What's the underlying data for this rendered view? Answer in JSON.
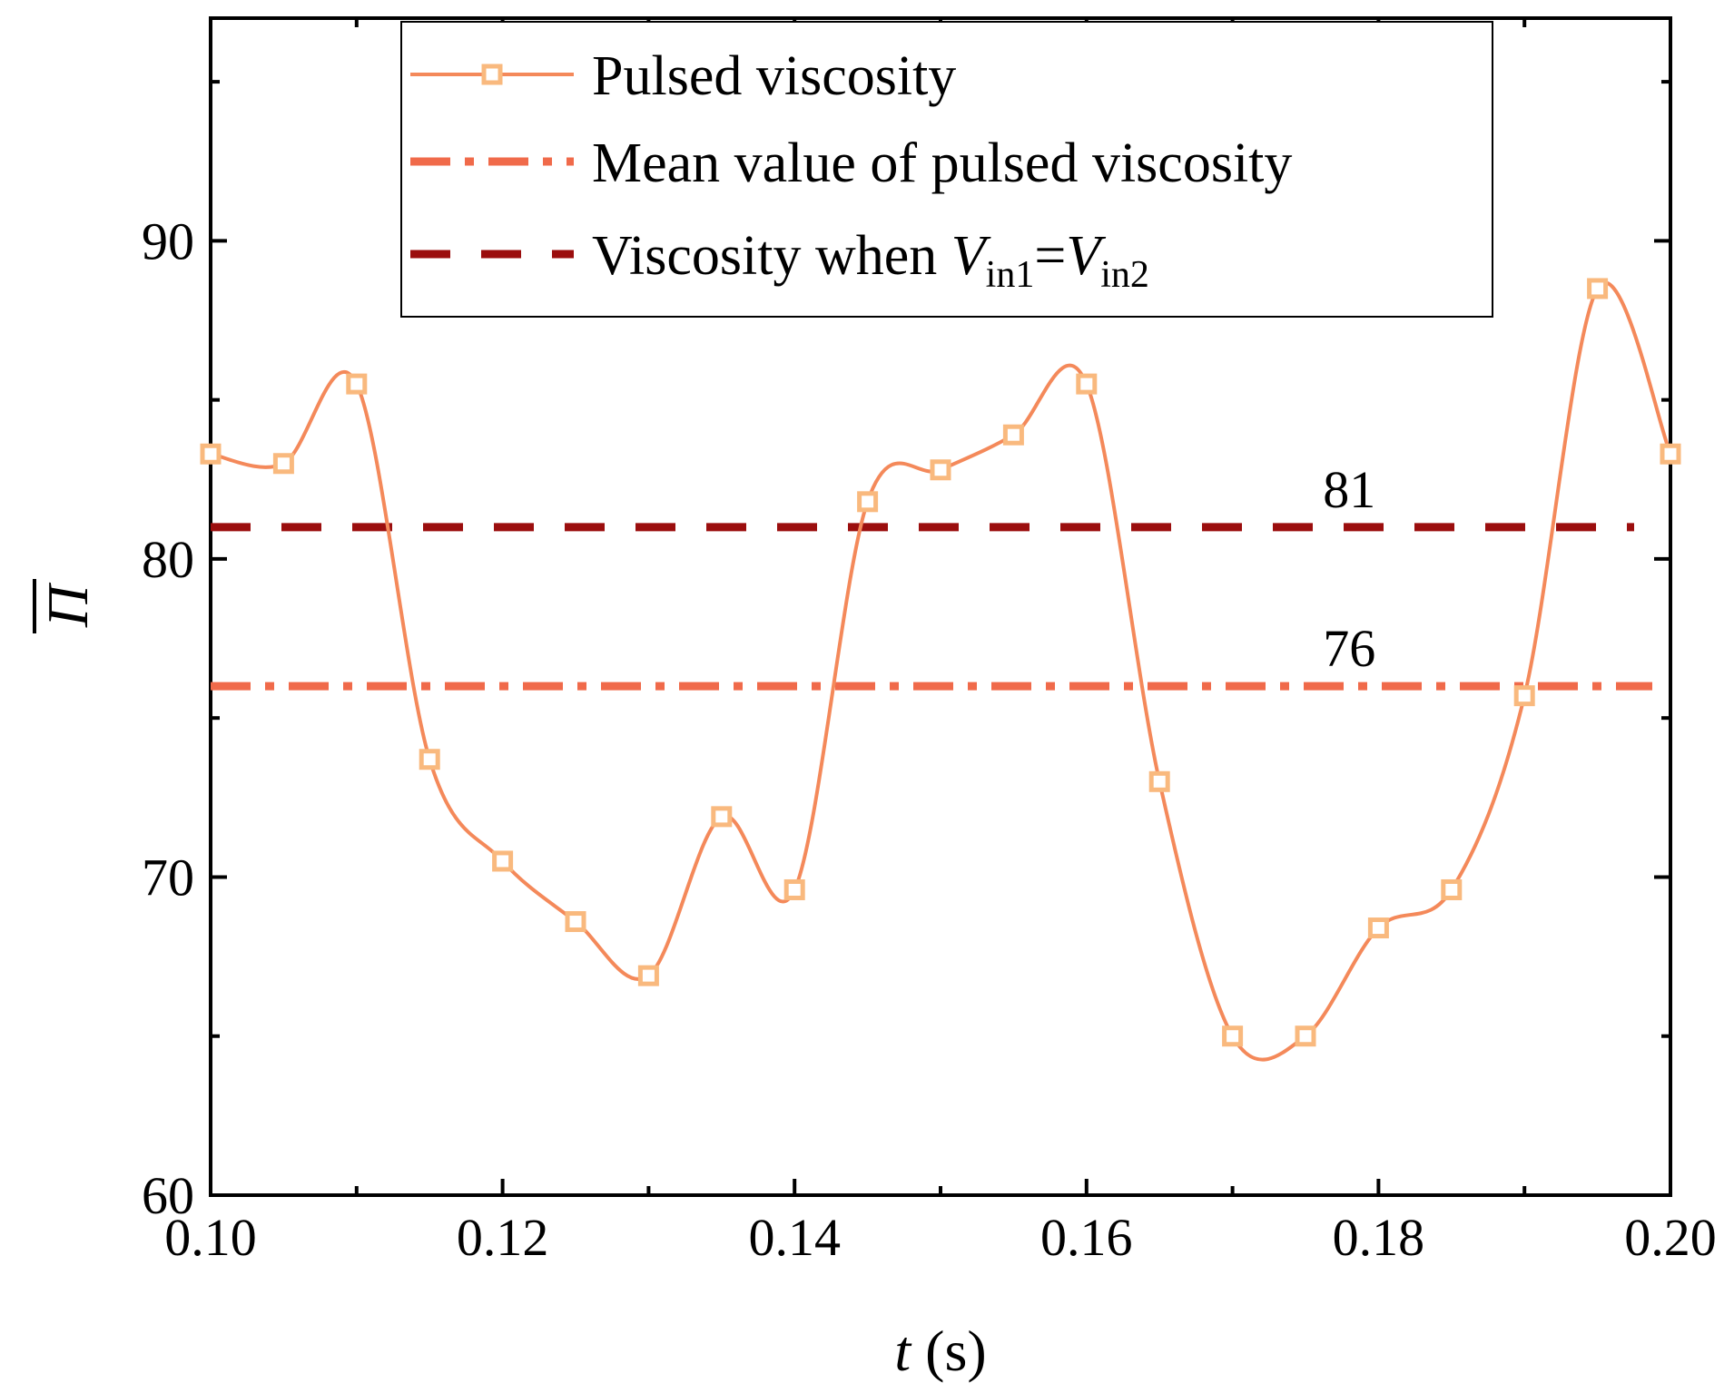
{
  "chart_data": {
    "type": "line",
    "xlabel": "t (s)",
    "xlabel_var": "t",
    "xlabel_unit": "(s)",
    "ylabel": "Π̄",
    "ylabel_symbol": "Π",
    "xlim": [
      0.1,
      0.2
    ],
    "ylim": [
      60,
      97
    ],
    "x_ticks": [
      0.1,
      0.12,
      0.14,
      0.16,
      0.18,
      0.2
    ],
    "x_tick_labels": [
      "0.10",
      "0.12",
      "0.14",
      "0.16",
      "0.18",
      "0.20"
    ],
    "x_minor_ticks": [
      0.11,
      0.13,
      0.15,
      0.17,
      0.19
    ],
    "y_ticks": [
      60,
      70,
      80,
      90
    ],
    "y_tick_labels": [
      "60",
      "70",
      "80",
      "90"
    ],
    "y_minor_ticks": [
      65,
      75,
      85,
      95
    ],
    "grid": false,
    "legend_position": "top-center",
    "series": [
      {
        "name": "Pulsed viscosity",
        "style": "solid line with square markers",
        "color": "#F4895A",
        "marker_color": "#F9B97E",
        "x": [
          0.1,
          0.105,
          0.11,
          0.115,
          0.12,
          0.125,
          0.13,
          0.135,
          0.14,
          0.145,
          0.15,
          0.155,
          0.16,
          0.165,
          0.17,
          0.175,
          0.18,
          0.185,
          0.19,
          0.195,
          0.2
        ],
        "values": [
          83.3,
          83.0,
          85.5,
          73.7,
          70.5,
          68.6,
          66.9,
          71.9,
          69.6,
          81.8,
          82.8,
          83.9,
          85.5,
          73.0,
          65.0,
          65.0,
          68.4,
          69.6,
          75.7,
          88.5,
          83.3
        ]
      },
      {
        "name": "Mean value of pulsed viscosity",
        "style": "dash-dot",
        "color": "#F06A4A",
        "value": 76
      },
      {
        "name": "Viscosity when V_in1=V_in2",
        "style": "dashed",
        "color": "#9B0E0E",
        "value": 81
      }
    ],
    "annotations": [
      {
        "text": "81",
        "x": 0.178,
        "y": 81
      },
      {
        "text": "76",
        "x": 0.178,
        "y": 76
      }
    ],
    "legend": {
      "pulsed": "Pulsed viscosity",
      "mean": "Mean value of pulsed viscosity",
      "equal_prefix": "Viscosity when ",
      "equal_v": "V",
      "equal_sub1": "in1",
      "equal_eq": "=",
      "equal_sub2": "in2"
    }
  }
}
